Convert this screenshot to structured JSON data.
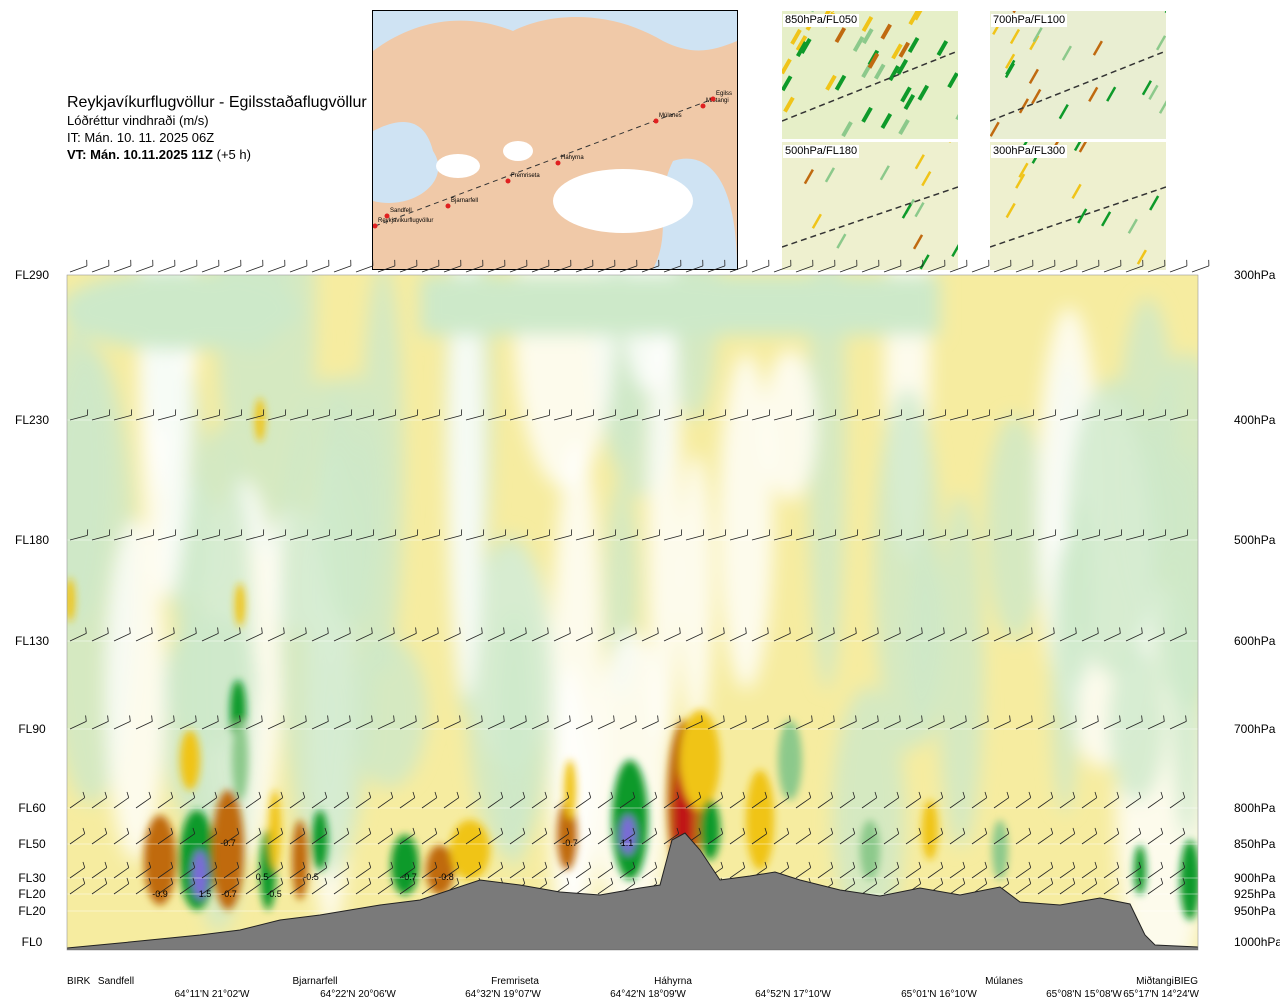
{
  "header": {
    "title": "Reykjavíkurflugvöllur - Egilsstaðaflugvöllur",
    "subtitle": "Lóðréttur vindhraði (m/s)",
    "issue_time": "IT: Mán. 10. 11. 2025 06Z",
    "valid_time_bold": "VT: Mán. 10.11.2025 11Z",
    "valid_time_offset": "(+5 h)"
  },
  "route_map": {
    "stations": [
      "Reykjavíkurflugvöllur",
      "Sandfell",
      "Bjarnarfell",
      "Fremriseta",
      "Háhyrna",
      "Múlanes",
      "Miðtangi",
      "Egilss"
    ]
  },
  "thumbnails": [
    {
      "label": "850hPa/FL050"
    },
    {
      "label": "700hPa/FL100"
    },
    {
      "label": "500hPa/FL180"
    },
    {
      "label": "300hPa/FL300"
    }
  ],
  "chart_data": {
    "type": "heatmap",
    "title": "Lóðréttur vindhraði (m/s)",
    "levels_left": [
      "FL290",
      "FL230",
      "FL180",
      "FL130",
      "FL90",
      "FL60",
      "FL50",
      "FL30",
      "FL20",
      "FL20",
      "FL0"
    ],
    "levels_right": [
      "300hPa",
      "400hPa",
      "500hPa",
      "600hPa",
      "700hPa",
      "800hPa",
      "850hPa",
      "900hPa",
      "925hPa",
      "950hPa",
      "1000hPa"
    ],
    "stations": [
      "BIRK",
      "Sandfell",
      "Bjarnarfell",
      "Fremriseta",
      "Háhyrna",
      "Múlanes",
      "Miðtangi",
      "BIEG"
    ],
    "coordinates": [
      "64°11'N 21°02'W",
      "64°22'N 20°06'W",
      "64°32'N 19°07'W",
      "64°42'N 18°09'W",
      "64°52'N 17°10'W",
      "65°01'N 16°10'W",
      "65°08'N 15°08'W",
      "65°17'N 14°24'W"
    ],
    "value_labels": [
      "-0.9",
      "1.5",
      "-0.7",
      "-0.7",
      "0.5",
      "-0.5",
      "-0.5",
      "-0.7",
      "-0.8",
      "-0.7",
      "1.1"
    ],
    "colors": {
      "strong_down": "#c01818",
      "down": "#c06a10",
      "weak_down": "#f0c419",
      "very_weak_down": "#f6eca0",
      "very_weak_up": "#cde9c9",
      "weak_up": "#8cc98b",
      "up": "#0e9a2a",
      "strong_up": "#7b6ad8",
      "terrain": "#7a7a7a"
    }
  }
}
